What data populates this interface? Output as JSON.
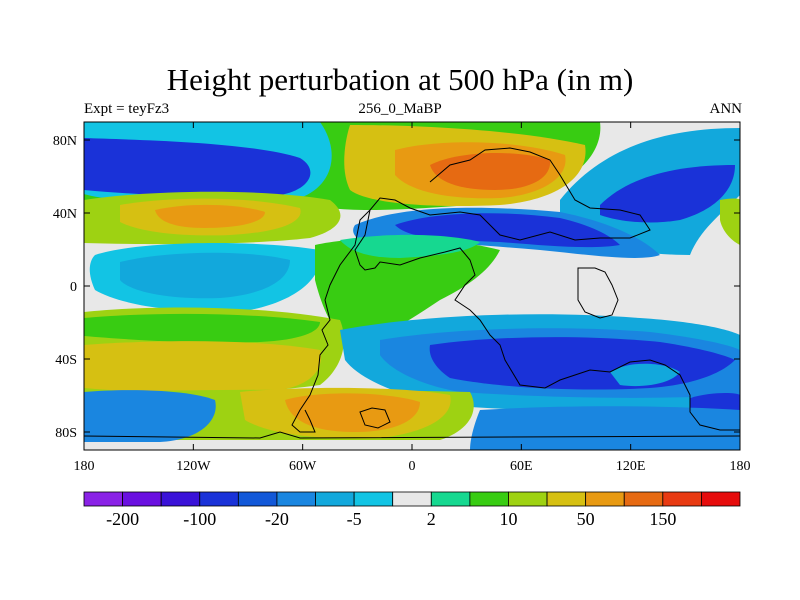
{
  "title": "Height perturbation at 500 hPa (in m)",
  "subtitle_left": "Expt = teyFz3",
  "subtitle_center": "256_0_MaBP",
  "subtitle_right": "ANN",
  "lat_ticks": [
    "80N",
    "40N",
    "0",
    "40S",
    "80S"
  ],
  "lon_ticks": [
    "180",
    "120W",
    "60W",
    "0",
    "60E",
    "120E",
    "180"
  ],
  "colorbar": {
    "colors": [
      "#8a22e6",
      "#6a10e0",
      "#3a12d8",
      "#1a32d8",
      "#1258d8",
      "#1a86e0",
      "#12a8dc",
      "#12c4e4",
      "#e8e8e8",
      "#16d890",
      "#38cc12",
      "#9ed212",
      "#d6c012",
      "#e89a12",
      "#e66a12",
      "#e83a12",
      "#e60c0c"
    ],
    "labels": [
      "-200",
      "-100",
      "-20",
      "-5",
      "2",
      "10",
      "50",
      "150"
    ]
  },
  "field_colors": {
    "neutral": "#e8e8e8",
    "cyan": "#12c4e4",
    "light_blue": "#12a8dc",
    "mid_blue": "#1a86e0",
    "blue": "#1a32d8",
    "teal_green": "#16d890",
    "green": "#38cc12",
    "yellow_green": "#9ed212",
    "yellow": "#d6c012",
    "orange": "#e89a12",
    "dark_orange": "#e66a12"
  }
}
